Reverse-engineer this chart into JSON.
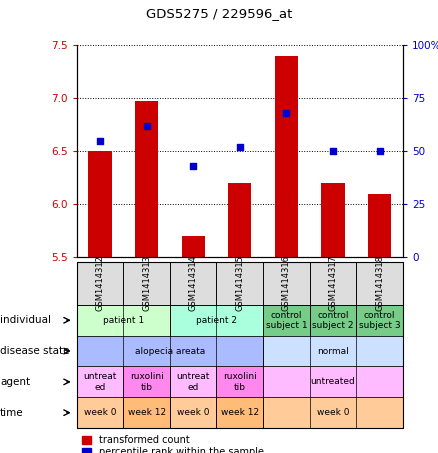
{
  "title": "GDS5275 / 229596_at",
  "samples": [
    "GSM1414312",
    "GSM1414313",
    "GSM1414314",
    "GSM1414315",
    "GSM1414316",
    "GSM1414317",
    "GSM1414318"
  ],
  "bar_values": [
    6.5,
    6.97,
    5.7,
    6.2,
    7.4,
    6.2,
    6.1
  ],
  "dot_values": [
    55,
    62,
    43,
    52,
    68,
    50,
    50
  ],
  "ylim_left": [
    5.5,
    7.5
  ],
  "ylim_right": [
    0,
    100
  ],
  "yticks_left": [
    5.5,
    6.0,
    6.5,
    7.0,
    7.5
  ],
  "yticks_right": [
    0,
    25,
    50,
    75,
    100
  ],
  "ytick_labels_right": [
    "0",
    "25",
    "50",
    "75",
    "100%"
  ],
  "bar_color": "#cc0000",
  "dot_color": "#0000cc",
  "bar_width": 0.5,
  "annotation_rows": [
    {
      "key": "individual",
      "label": "individual",
      "groups": [
        {
          "cols": [
            0,
            1
          ],
          "text": "patient 1",
          "color": "#ccffcc"
        },
        {
          "cols": [
            2,
            3
          ],
          "text": "patient 2",
          "color": "#aaffdd"
        },
        {
          "cols": [
            4
          ],
          "text": "control\nsubject 1",
          "color": "#77cc88"
        },
        {
          "cols": [
            5
          ],
          "text": "control\nsubject 2",
          "color": "#77cc88"
        },
        {
          "cols": [
            6
          ],
          "text": "control\nsubject 3",
          "color": "#77cc88"
        }
      ]
    },
    {
      "key": "disease_state",
      "label": "disease state",
      "groups": [
        {
          "cols": [
            0,
            1,
            2,
            3
          ],
          "text": "alopecia areata",
          "color": "#aabbff"
        },
        {
          "cols": [
            4,
            5,
            6
          ],
          "text": "normal",
          "color": "#cce0ff"
        }
      ]
    },
    {
      "key": "agent",
      "label": "agent",
      "groups": [
        {
          "cols": [
            0
          ],
          "text": "untreat\ned",
          "color": "#ffbbff"
        },
        {
          "cols": [
            1
          ],
          "text": "ruxolini\ntib",
          "color": "#ff88ee"
        },
        {
          "cols": [
            2
          ],
          "text": "untreat\ned",
          "color": "#ffbbff"
        },
        {
          "cols": [
            3
          ],
          "text": "ruxolini\ntib",
          "color": "#ff88ee"
        },
        {
          "cols": [
            4,
            5,
            6
          ],
          "text": "untreated",
          "color": "#ffbbff"
        }
      ]
    },
    {
      "key": "time",
      "label": "time",
      "groups": [
        {
          "cols": [
            0
          ],
          "text": "week 0",
          "color": "#ffcc99"
        },
        {
          "cols": [
            1
          ],
          "text": "week 12",
          "color": "#ffbb77"
        },
        {
          "cols": [
            2
          ],
          "text": "week 0",
          "color": "#ffcc99"
        },
        {
          "cols": [
            3
          ],
          "text": "week 12",
          "color": "#ffbb77"
        },
        {
          "cols": [
            4,
            5,
            6
          ],
          "text": "week 0",
          "color": "#ffcc99"
        }
      ]
    }
  ]
}
